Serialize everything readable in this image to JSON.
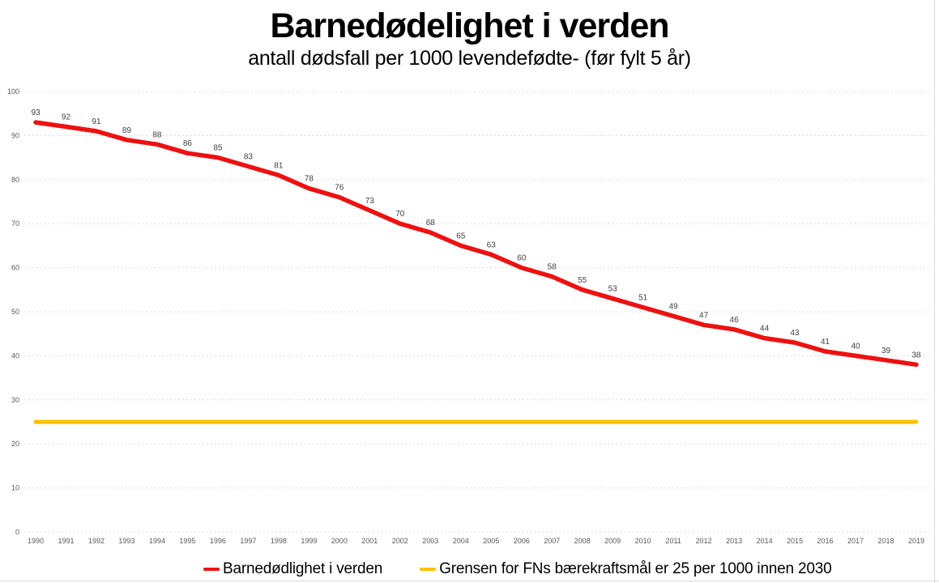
{
  "header": {
    "title": "Barnedødelighet i verden",
    "subtitle": "antall dødsfall per 1000 levendefødte- (før fylt 5 år)"
  },
  "chart_data": {
    "type": "line",
    "title": "Barnedødelighet i verden",
    "subtitle": "antall dødsfall per 1000 levendefødte- (før fylt 5 år)",
    "x": [
      "1990",
      "1991",
      "1992",
      "1993",
      "1994",
      "1995",
      "1996",
      "1997",
      "1998",
      "1999",
      "2000",
      "2001",
      "2002",
      "2003",
      "2004",
      "2005",
      "2006",
      "2007",
      "2008",
      "2009",
      "2010",
      "2011",
      "2012",
      "2013",
      "2014",
      "2015",
      "2016",
      "2017",
      "2018",
      "2019"
    ],
    "series": [
      {
        "name": "Barnedødlighet i verden",
        "color": "#ee1111",
        "stroke_width": 5.5,
        "data_labels": true,
        "values": [
          93,
          92,
          91,
          89,
          88,
          86,
          85,
          83,
          81,
          78,
          76,
          73,
          70,
          68,
          65,
          63,
          60,
          58,
          55,
          53,
          51,
          49,
          47,
          46,
          44,
          43,
          41,
          40,
          39,
          38
        ]
      },
      {
        "name": "Grensen for FNs bærekraftsmål er 25 per 1000 innen 2030",
        "color": "#ffc000",
        "stroke_width": 5,
        "data_labels": false,
        "values": [
          25,
          25,
          25,
          25,
          25,
          25,
          25,
          25,
          25,
          25,
          25,
          25,
          25,
          25,
          25,
          25,
          25,
          25,
          25,
          25,
          25,
          25,
          25,
          25,
          25,
          25,
          25,
          25,
          25,
          25
        ]
      }
    ],
    "ylim": [
      0,
      100
    ],
    "yticks": [
      0,
      10,
      20,
      30,
      40,
      50,
      60,
      70,
      80,
      90,
      100
    ],
    "grid": "horizontal-dashed",
    "legend_position": "bottom"
  },
  "styles": {
    "grid_color": "#dcdcdc",
    "axis_label_color": "#595959",
    "data_label_color": "#404040",
    "title_color": "#000000",
    "background_color": "#ffffff"
  }
}
